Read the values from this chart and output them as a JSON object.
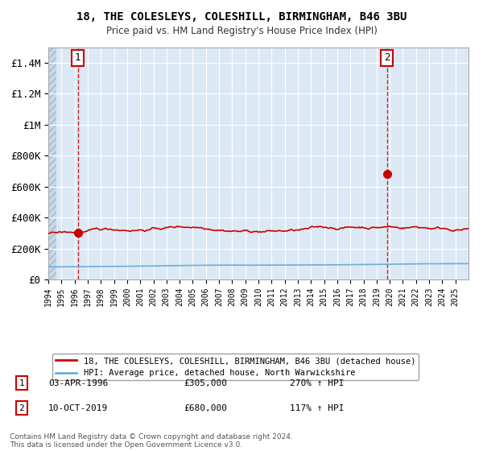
{
  "title1": "18, THE COLESLEYS, COLESHILL, BIRMINGHAM, B46 3BU",
  "title2": "Price paid vs. HM Land Registry's House Price Index (HPI)",
  "ylim": [
    0,
    1500000
  ],
  "yticks": [
    0,
    200000,
    400000,
    600000,
    800000,
    1000000,
    1200000,
    1400000
  ],
  "ytick_labels": [
    "£0",
    "£200K",
    "£400K",
    "£600K",
    "£800K",
    "£1M",
    "£1.2M",
    "£1.4M"
  ],
  "hpi_color": "#6baed6",
  "price_color": "#cc0000",
  "bg_color": "#dce9f5",
  "legend1": "18, THE COLESLEYS, COLESHILL, BIRMINGHAM, B46 3BU (detached house)",
  "legend2": "HPI: Average price, detached house, North Warwickshire",
  "annotation1_date": "03-APR-1996",
  "annotation1_price": "£305,000",
  "annotation1_hpi": "270% ↑ HPI",
  "annotation2_date": "10-OCT-2019",
  "annotation2_price": "£680,000",
  "annotation2_hpi": "117% ↑ HPI",
  "sale1_year": 1996.25,
  "sale1_value": 305000,
  "sale2_year": 2019.78,
  "sale2_value": 680000,
  "footer": "Contains HM Land Registry data © Crown copyright and database right 2024.\nThis data is licensed under the Open Government Licence v3.0.",
  "xmin": 1994,
  "xmax": 2026
}
